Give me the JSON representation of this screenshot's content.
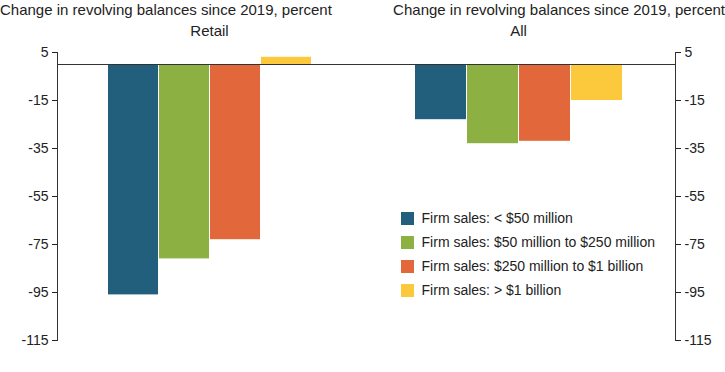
{
  "chart_data": [
    {
      "type": "bar",
      "title": "Change in revolving balances since 2019, percent",
      "subtitle": "Retail",
      "categories": [
        null
      ],
      "series": [
        {
          "name": "Firm sales: < $50 million",
          "color": "#215f7c",
          "values": [
            -96
          ]
        },
        {
          "name": "Firm sales: $50 million to $250 million",
          "color": "#8db043",
          "values": [
            -81
          ]
        },
        {
          "name": "Firm sales: $250 million to $1 billion",
          "color": "#e2673a",
          "values": [
            -73
          ]
        },
        {
          "name": "Firm sales: > $1 billion",
          "color": "#fdc93c",
          "values": [
            3
          ]
        }
      ],
      "ylim": [
        -115,
        5
      ],
      "yticks": [
        -115,
        -95,
        -75,
        -55,
        -35,
        -15,
        5
      ]
    },
    {
      "type": "bar",
      "title": "Change in revolving balances since 2019, percent",
      "subtitle": "All",
      "categories": [
        null
      ],
      "series": [
        {
          "name": "Firm sales: < $50 million",
          "color": "#215f7c",
          "values": [
            -23
          ]
        },
        {
          "name": "Firm sales: $50 million to $250 million",
          "color": "#8db043",
          "values": [
            -33
          ]
        },
        {
          "name": "Firm sales: $250 million to $1 billion",
          "color": "#e2673a",
          "values": [
            -32
          ]
        },
        {
          "name": "Firm sales: > $1 billion",
          "color": "#fdc93c",
          "values": [
            -15
          ]
        }
      ],
      "ylim": [
        -115,
        5
      ],
      "yticks": [
        -115,
        -95,
        -75,
        -55,
        -35,
        -15,
        5
      ],
      "legend": "bottom right"
    }
  ]
}
